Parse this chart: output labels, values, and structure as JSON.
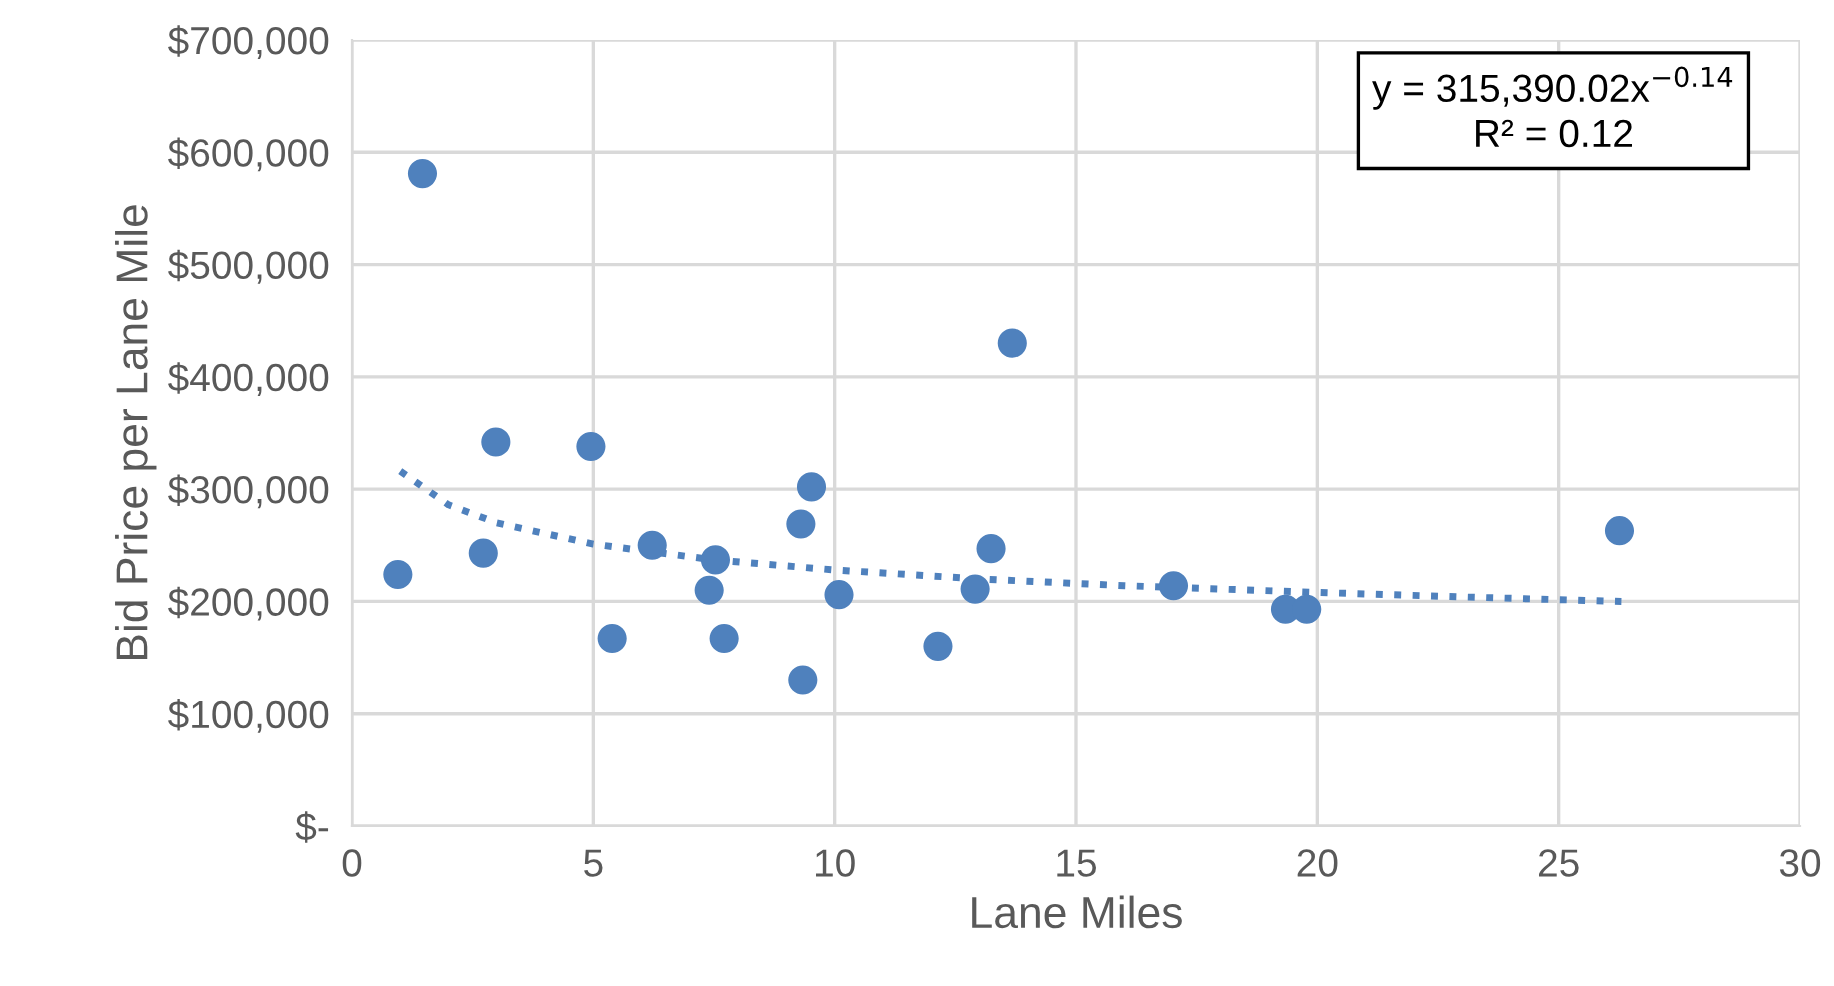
{
  "chart_data": {
    "type": "scatter",
    "xlabel": "Lane Miles",
    "ylabel": "Bid Price per Lane Mile",
    "xlim": [
      0,
      30
    ],
    "xticks": [
      0,
      5,
      10,
      15,
      20,
      25,
      30
    ],
    "ylim": [
      0,
      700000
    ],
    "yticks": [
      {
        "value": 0,
        "label": "$-"
      },
      {
        "value": 100000,
        "label": "$100,000"
      },
      {
        "value": 200000,
        "label": "$200,000"
      },
      {
        "value": 300000,
        "label": "$300,000"
      },
      {
        "value": 400000,
        "label": "$400,000"
      },
      {
        "value": 500000,
        "label": "$500,000"
      },
      {
        "value": 600000,
        "label": "$600,000"
      },
      {
        "value": 700000,
        "label": "$700,000"
      }
    ],
    "grid": true,
    "legend": false,
    "marker": "circle",
    "annotations": [
      "y = 315,390.02x$^{−0.14}$",
      "R² = 0.12"
    ],
    "series": [
      {
        "color": "#4f81bd",
        "x": [
          0.95,
          1.46,
          2.98,
          2.72,
          4.95,
          5.39,
          6.22,
          7.53,
          7.4,
          7.71,
          9.52,
          9.3,
          9.34,
          10.09,
          12.14,
          13.24,
          12.91,
          13.68,
          17.02,
          19.34,
          19.78,
          26.26
        ],
        "values": [
          224000,
          581000,
          342000,
          243000,
          338000,
          167000,
          250000,
          237000,
          210000,
          167000,
          302000,
          269000,
          130000,
          206000,
          160000,
          247000,
          211000,
          430000,
          214000,
          193000,
          193000,
          263000
        ]
      },
      {
        "type": "line",
        "color": "#4f81bd",
        "line_style": "dotted",
        "marker": "none",
        "x": [
          1,
          2,
          3,
          5,
          7.5,
          10,
          13,
          16,
          20,
          23,
          26.3
        ],
        "values": [
          316000,
          286000,
          270000,
          251000,
          237000,
          228000,
          220000,
          214000,
          208000,
          204000,
          200000
        ]
      }
    ]
  }
}
